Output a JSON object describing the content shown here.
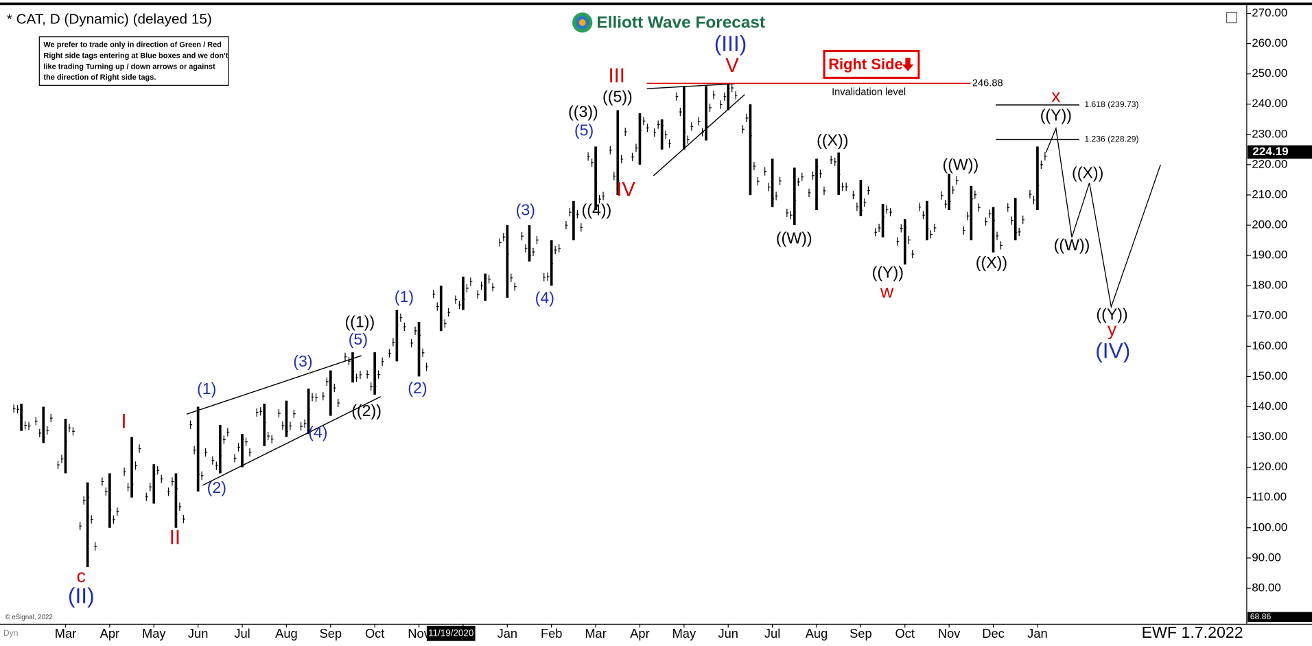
{
  "chart_data": {
    "type": "ohlc",
    "title": "* CAT, D (Dynamic) (delayed 15)",
    "brand": "Elliott Wave Forecast",
    "note": [
      "We prefer to trade only in direction of Green / Red",
      "Right side tags entering at Blue boxes and we don't",
      "like trading Turning up / down arrows or against",
      "the direction of Right side tags."
    ],
    "right_side_tag": "Right Side",
    "color": "#000000",
    "categories": [
      null,
      null,
      "Mar",
      null,
      "Apr",
      null,
      "May",
      null,
      "Jun",
      null,
      "Jul",
      null,
      "Aug",
      null,
      "Sep",
      null,
      "Oct",
      null,
      "Nov",
      null,
      "Dec",
      null,
      "Jan",
      null,
      "Feb",
      null,
      "Mar",
      null,
      "Apr",
      null,
      "May",
      null,
      "Jun",
      null,
      "Jul",
      null,
      "Aug",
      null,
      "Sep",
      null,
      "Oct",
      null,
      "Nov",
      null,
      "Dec",
      null,
      "Jan"
    ],
    "low": [
      132,
      128,
      118,
      87,
      100,
      110,
      108,
      100,
      112,
      118,
      120,
      127,
      130,
      131,
      137,
      148,
      144,
      155,
      150,
      165,
      172,
      175,
      176,
      188,
      180,
      195,
      205,
      210,
      220,
      225,
      225,
      228,
      238,
      210,
      206,
      200,
      205,
      210,
      203,
      196,
      187,
      195,
      205,
      195,
      191,
      195,
      205
    ],
    "high": [
      141,
      140,
      136,
      115,
      118,
      130,
      121,
      118,
      140,
      134,
      131,
      141,
      142,
      146,
      152,
      158,
      158,
      172,
      168,
      180,
      183,
      184,
      200,
      200,
      195,
      208,
      226,
      238,
      237,
      235,
      246,
      246,
      247,
      240,
      222,
      219,
      222,
      224,
      215,
      207,
      202,
      208,
      217,
      213,
      206,
      209,
      226
    ],
    "ylim": [
      68.86,
      272
    ],
    "yticks": [
      {
        "value": 80,
        "label": "80.00"
      },
      {
        "value": 90,
        "label": "90.00"
      },
      {
        "value": 100,
        "label": "100.00"
      },
      {
        "value": 110,
        "label": "110.00"
      },
      {
        "value": 120,
        "label": "120.00"
      },
      {
        "value": 130,
        "label": "130.00"
      },
      {
        "value": 140,
        "label": "140.00"
      },
      {
        "value": 150,
        "label": "150.00"
      },
      {
        "value": 160,
        "label": "160.00"
      },
      {
        "value": 170,
        "label": "170.00"
      },
      {
        "value": 180,
        "label": "180.00"
      },
      {
        "value": 190,
        "label": "190.00"
      },
      {
        "value": 200,
        "label": "200.00"
      },
      {
        "value": 210,
        "label": "210.00"
      },
      {
        "value": 220,
        "label": "220.00"
      },
      {
        "value": 230,
        "label": "230.00"
      },
      {
        "value": 240,
        "label": "240.00"
      },
      {
        "value": 250,
        "label": "250.00"
      },
      {
        "value": 260,
        "label": "260.00"
      },
      {
        "value": 270,
        "label": "270.00"
      }
    ],
    "last_price": 224.19,
    "bottom_tag": 68.86,
    "levels": [
      {
        "value": 246.88,
        "label": "246.88"
      },
      {
        "value": 239.73,
        "label": "1.618 (239.73)"
      },
      {
        "value": 228.29,
        "label": "1.236 (228.29)"
      }
    ],
    "invalidation_text": "Invalidation level",
    "projection": [
      224,
      232,
      196,
      214,
      173,
      220
    ],
    "annotations": [
      {
        "text": "c",
        "color": "#d00000"
      },
      {
        "text": "I",
        "color": "#d00000"
      },
      {
        "text": "II",
        "color": "#d00000"
      },
      {
        "text": "III",
        "color": "#d00000"
      },
      {
        "text": "IV",
        "color": "#d00000"
      },
      {
        "text": "V",
        "color": "#d00000"
      },
      {
        "text": "w",
        "color": "#d00000"
      },
      {
        "text": "x",
        "color": "#d00000"
      },
      {
        "text": "y",
        "color": "#d00000"
      },
      {
        "text": "(II)",
        "color": "#1f2fb0"
      },
      {
        "text": "(III)",
        "color": "#1f2fb0"
      },
      {
        "text": "(IV)",
        "color": "#1f2fb0"
      },
      {
        "text": "(1)",
        "color": "#1f2fb0"
      },
      {
        "text": "(2)",
        "color": "#1f2fb0"
      },
      {
        "text": "(3)",
        "color": "#1f2fb0"
      },
      {
        "text": "(4)",
        "color": "#1f2fb0"
      },
      {
        "text": "(5)",
        "color": "#1f2fb0"
      },
      {
        "text": "(1)",
        "color": "#1f2fb0"
      },
      {
        "text": "(2)",
        "color": "#1f2fb0"
      },
      {
        "text": "(3)",
        "color": "#1f2fb0"
      },
      {
        "text": "(4)",
        "color": "#1f2fb0"
      },
      {
        "text": "(5)",
        "color": "#1f2fb0"
      },
      {
        "text": "((1))",
        "color": "#000000"
      },
      {
        "text": "((2))",
        "color": "#000000"
      },
      {
        "text": "((3))",
        "color": "#000000"
      },
      {
        "text": "((4))",
        "color": "#000000"
      },
      {
        "text": "((5))",
        "color": "#000000"
      },
      {
        "text": "((X))",
        "color": "#000000"
      },
      {
        "text": "((W))",
        "color": "#000000"
      },
      {
        "text": "((Y))",
        "color": "#000000"
      },
      {
        "text": "((W))",
        "color": "#000000"
      },
      {
        "text": "((X))",
        "color": "#000000"
      },
      {
        "text": "((Y))",
        "color": "#000000"
      },
      {
        "text": "((X))",
        "color": "#000000"
      },
      {
        "text": "((W))",
        "color": "#000000"
      },
      {
        "text": "((Y))",
        "color": "#000000"
      }
    ],
    "cursor_date": "11/19/2020",
    "footer": "EWF 1.7.2022",
    "copyright": "© eSignal, 2022",
    "dyn": "Dyn"
  }
}
